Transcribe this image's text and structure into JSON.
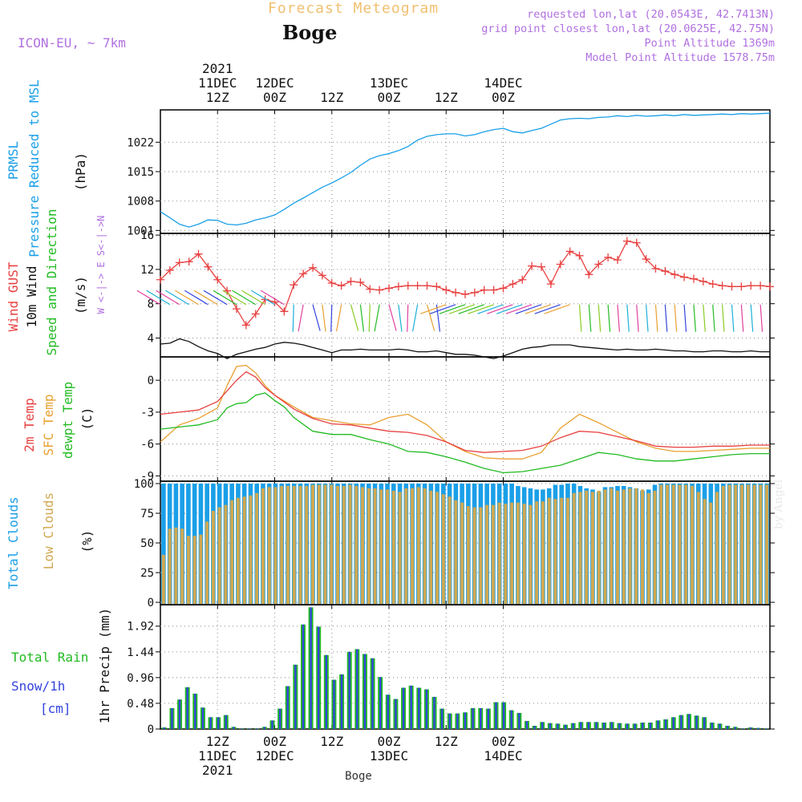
{
  "header": {
    "title": "Forecast Meteogram",
    "location": "Boge",
    "model": "ICON-EU, ~ 7km",
    "requested": "requested lon,lat (20.0543E, 42.7413N)",
    "gridpoint": "grid point closest lon,lat (20.0625E, 42.75N)",
    "point_alt": "Point Altitude 1369m",
    "model_alt": "Model Point Altitude 1578.75m",
    "credit": "by Angel",
    "footer": "Boge"
  },
  "colors": {
    "pressure": "#1a9fe8",
    "gust": "#e84040",
    "wind": "#111111",
    "dir": "#22bb22",
    "t2m": "#e84040",
    "tsfc": "#e8a030",
    "tdew": "#22bb22",
    "cloud_total": "#1a9fe8",
    "cloud_low": "#d0a850",
    "rain": "#22bb22",
    "snow": "#3344dd",
    "grid": "#999999"
  },
  "chart_data": [
    {
      "type": "line",
      "title": "PRMSL Pressure Reduced to MSL",
      "ylabel": "(hPa)",
      "label_lines": [
        "PRMSL",
        "Pressure Reduced to MSL",
        "(hPa)"
      ],
      "ylim": [
        1000.3,
        1029.7
      ],
      "yticks": [
        1001,
        1008,
        1015,
        1022
      ],
      "series": [
        {
          "name": "PRMSL",
          "x": [
            0,
            2,
            4,
            6,
            8,
            10,
            12,
            14,
            16,
            18,
            20,
            22,
            24,
            26,
            28,
            30,
            32,
            34,
            36,
            38,
            40,
            42,
            44,
            46,
            48,
            50,
            52,
            54,
            56,
            58,
            60,
            62,
            64,
            66,
            68,
            70,
            72,
            74,
            76,
            78,
            80,
            82,
            84,
            86,
            88,
            90,
            92,
            94,
            96,
            98,
            100,
            102,
            104,
            106,
            108,
            110,
            112,
            114,
            116,
            118,
            120,
            122,
            124,
            126,
            128
          ],
          "values": [
            1005.5,
            1004,
            1002.5,
            1001.8,
            1002.5,
            1003.5,
            1003.4,
            1002.5,
            1002.3,
            1002.7,
            1003.5,
            1004,
            1004.7,
            1006,
            1007.5,
            1008.7,
            1010,
            1011.3,
            1012.3,
            1013.5,
            1014.8,
            1016.5,
            1018,
            1018.8,
            1019.3,
            1020,
            1021,
            1022.5,
            1023.4,
            1023.8,
            1024,
            1024,
            1023.5,
            1023.8,
            1024.5,
            1025,
            1025.3,
            1024.5,
            1024.2,
            1024.8,
            1025.3,
            1026.3,
            1027.3,
            1027.6,
            1027.7,
            1027.6,
            1027.9,
            1028,
            1028.3,
            1028.1,
            1028.4,
            1028.2,
            1028.3,
            1028.5,
            1028.3,
            1028.6,
            1028.4,
            1028.5,
            1028.6,
            1028.7,
            1028.6,
            1028.8,
            1028.7,
            1028.8,
            1028.9
          ]
        }
      ]
    },
    {
      "type": "line",
      "title": "Wind GUST / 10m Wind Speed and Direction",
      "ylabel": "(m/s)",
      "label_lines": [
        "Wind GUST",
        "10m Wind",
        "Speed and Direction",
        "(m/s)"
      ],
      "compass": "W <-|-> E  S<-|->N",
      "ylim": [
        1.8,
        16.2
      ],
      "yticks": [
        4,
        8,
        12,
        16
      ],
      "series": [
        {
          "name": "Wind GUST",
          "x": [
            0,
            2,
            4,
            6,
            8,
            10,
            12,
            14,
            16,
            18,
            20,
            22,
            24,
            26,
            28,
            30,
            32,
            34,
            36,
            38,
            40,
            42,
            44,
            46,
            48,
            50,
            52,
            54,
            56,
            58,
            60,
            62,
            64,
            66,
            68,
            70,
            72,
            74,
            76,
            78,
            80,
            82,
            84,
            86,
            88,
            90,
            92,
            94,
            96,
            98,
            100,
            102,
            104,
            106,
            108,
            110,
            112,
            114,
            116,
            118,
            120,
            122,
            124,
            126,
            128
          ],
          "values": [
            10.8,
            11.9,
            12.8,
            12.9,
            13.8,
            12.3,
            10.8,
            9.5,
            7.4,
            5.5,
            6.8,
            8.5,
            8.2,
            7.1,
            10.2,
            11.5,
            12.2,
            11.3,
            10.4,
            10.1,
            10.6,
            10.5,
            9.7,
            9.6,
            9.8,
            10,
            10.1,
            10.1,
            10.1,
            10,
            9.6,
            9.3,
            9.1,
            9.3,
            9.6,
            9.6,
            9.8,
            10.3,
            10.8,
            12.4,
            12.3,
            10.3,
            12.6,
            14.1,
            13.6,
            11.4,
            12.6,
            13.4,
            13.1,
            15.3,
            15.1,
            13.2,
            12.1,
            11.8,
            11.4,
            11.1,
            10.9,
            10.6,
            10.3,
            10.1,
            10.0,
            10.0,
            10.1,
            10.1,
            10.0
          ]
        },
        {
          "name": "10m Wind",
          "x": [
            0,
            2,
            4,
            6,
            8,
            10,
            12,
            14,
            16,
            18,
            20,
            22,
            24,
            26,
            28,
            30,
            32,
            34,
            36,
            38,
            40,
            42,
            44,
            46,
            48,
            50,
            52,
            54,
            56,
            58,
            60,
            62,
            64,
            66,
            68,
            70,
            72,
            74,
            76,
            78,
            80,
            82,
            84,
            86,
            88,
            90,
            92,
            94,
            96,
            98,
            100,
            102,
            104,
            106,
            108,
            110,
            112,
            114,
            116,
            118,
            120,
            122,
            124,
            126,
            128
          ],
          "values": [
            3.3,
            3.4,
            3.9,
            3.6,
            3,
            2.5,
            2.2,
            1.6,
            2.1,
            2.4,
            2.7,
            2.9,
            3.3,
            3.5,
            3.4,
            3.2,
            2.9,
            2.6,
            2.3,
            2.6,
            2.6,
            2.7,
            2.6,
            2.6,
            2.6,
            2.7,
            2.6,
            2.4,
            2.4,
            2.5,
            2.3,
            2.1,
            2.1,
            2,
            1.8,
            1.6,
            1.9,
            2.3,
            2.7,
            2.9,
            3,
            3.2,
            3.2,
            3.2,
            3,
            2.9,
            2.8,
            2.7,
            2.6,
            2.7,
            2.6,
            2.6,
            2.7,
            2.6,
            2.5,
            2.5,
            2.4,
            2.4,
            2.5,
            2.5,
            2.4,
            2.4,
            2.5,
            2.4,
            2.4
          ]
        }
      ]
    },
    {
      "type": "line",
      "title": "2m Temp / SFC Temp / dewpt Temp",
      "ylabel": "(C)",
      "label_lines": [
        "2m Temp",
        "SFC Temp",
        "dewpt Temp",
        "(C)"
      ],
      "ylim": [
        -9.5,
        2.2
      ],
      "yticks": [
        -9,
        -6,
        -3,
        0
      ],
      "series": [
        {
          "name": "2m Temp",
          "x": [
            0,
            4,
            8,
            12,
            16,
            18,
            20,
            22,
            24,
            28,
            32,
            36,
            40,
            44,
            48,
            52,
            56,
            60,
            64,
            68,
            72,
            76,
            80,
            84,
            88,
            92,
            96,
            100,
            104,
            108,
            112,
            116,
            120,
            124,
            128
          ],
          "values": [
            -3.2,
            -3,
            -2.8,
            -2,
            0,
            0.8,
            0.3,
            -0.7,
            -1.4,
            -2.7,
            -3.6,
            -4.1,
            -4.2,
            -4.5,
            -4.8,
            -4.9,
            -5.2,
            -5.8,
            -6.6,
            -6.8,
            -6.7,
            -6.6,
            -6.2,
            -5.4,
            -4.8,
            -4.9,
            -5.3,
            -5.7,
            -6.2,
            -6.3,
            -6.3,
            -6.2,
            -6.2,
            -6.1,
            -6.1
          ]
        },
        {
          "name": "SFC Temp",
          "x": [
            0,
            4,
            8,
            12,
            14,
            16,
            18,
            20,
            22,
            24,
            28,
            32,
            36,
            40,
            44,
            48,
            52,
            56,
            60,
            64,
            68,
            72,
            76,
            80,
            84,
            88,
            92,
            96,
            100,
            104,
            108,
            112,
            116,
            120,
            124,
            128
          ],
          "values": [
            -5.8,
            -4.2,
            -3.6,
            -2.6,
            -0.5,
            1.3,
            1.4,
            0.7,
            -0.5,
            -1.4,
            -2.5,
            -3.5,
            -3.8,
            -4.1,
            -4.2,
            -3.5,
            -3.2,
            -4.2,
            -5.8,
            -6.7,
            -7.3,
            -7.4,
            -7.4,
            -6.8,
            -4.5,
            -3.2,
            -4,
            -4.9,
            -5.8,
            -6.4,
            -6.7,
            -6.7,
            -6.6,
            -6.5,
            -6.4,
            -6.4
          ]
        },
        {
          "name": "dewpt Temp",
          "x": [
            0,
            4,
            8,
            12,
            14,
            16,
            18,
            20,
            22,
            24,
            26,
            28,
            32,
            36,
            40,
            44,
            48,
            52,
            56,
            60,
            64,
            68,
            72,
            76,
            80,
            84,
            88,
            92,
            96,
            100,
            104,
            108,
            112,
            116,
            120,
            124,
            128
          ],
          "values": [
            -4.6,
            -4.4,
            -4.2,
            -3.7,
            -2.6,
            -2.2,
            -2.1,
            -1.4,
            -1.2,
            -1.9,
            -2.5,
            -3.5,
            -4.8,
            -5.1,
            -5.1,
            -5.6,
            -6,
            -6.7,
            -6.8,
            -7.2,
            -7.7,
            -8.3,
            -8.7,
            -8.6,
            -8.3,
            -8.0,
            -7.4,
            -6.8,
            -7.0,
            -7.4,
            -7.6,
            -7.6,
            -7.4,
            -7.2,
            -7.0,
            -6.9,
            -6.9
          ]
        }
      ]
    },
    {
      "type": "bar",
      "title": "Total Clouds / Low Clouds",
      "ylabel": "(%)",
      "label_lines": [
        "Total Clouds",
        "Low Clouds",
        "(%)"
      ],
      "ylim": [
        -2,
        102
      ],
      "yticks": [
        0,
        25,
        50,
        75,
        100
      ],
      "series": [
        {
          "name": "Total Clouds",
          "values": [
            100,
            100,
            100,
            100,
            100,
            100,
            100,
            100,
            100,
            100,
            100,
            100,
            100,
            100,
            100,
            100,
            100,
            100,
            100,
            100,
            100,
            100,
            100,
            100,
            100,
            100,
            100,
            100,
            100,
            100,
            100,
            100,
            100,
            100,
            100,
            100,
            100,
            100,
            100,
            100,
            100,
            100,
            100,
            100,
            100,
            100,
            100,
            100,
            100,
            100,
            100,
            100,
            100,
            100,
            100,
            100,
            100,
            98,
            97,
            96,
            95,
            95,
            96,
            99,
            99,
            100,
            100,
            98,
            96,
            95,
            93,
            97,
            97,
            98,
            98,
            97,
            96,
            94,
            95,
            99,
            100,
            100,
            100,
            100,
            100,
            100,
            100,
            100,
            100,
            100,
            100,
            100,
            100,
            100,
            100,
            100,
            100,
            100
          ]
        },
        {
          "name": "Low Clouds",
          "values": [
            40,
            62,
            63,
            62,
            56,
            56,
            57,
            68,
            77,
            80,
            82,
            86,
            88,
            89,
            90,
            92,
            96,
            97,
            97,
            98,
            98,
            98,
            98,
            98,
            99,
            99,
            99,
            99,
            98,
            98,
            99,
            98,
            97,
            96,
            96,
            95,
            95,
            94,
            93,
            96,
            96,
            97,
            96,
            94,
            93,
            91,
            89,
            86,
            84,
            81,
            80,
            80,
            82,
            82,
            84,
            83,
            84,
            84,
            83,
            82,
            85,
            85,
            88,
            87,
            88,
            88,
            92,
            93,
            94,
            93,
            94,
            95,
            96,
            94,
            95,
            96,
            96,
            95,
            92,
            94,
            99,
            99,
            99,
            99,
            99,
            98,
            93,
            87,
            84,
            93,
            98,
            99,
            99,
            99,
            99,
            99,
            99,
            99
          ]
        }
      ]
    },
    {
      "type": "bar",
      "title": "Total Rain / Snow/1h [cm]",
      "ylabel": "1hr Precip (mm)",
      "label_lines": [
        "Total  Rain",
        "Snow/1h",
        "[cm]",
        "1hr Precip (mm)"
      ],
      "ylim": [
        0,
        2.32
      ],
      "yticks": [
        0,
        0.48,
        0.96,
        1.44,
        1.92
      ],
      "series": [
        {
          "name": "Total Rain",
          "values": [
            0.03,
            0.39,
            0.55,
            0.78,
            0.66,
            0.4,
            0.22,
            0.22,
            0.26,
            0.04,
            0.01,
            0.01,
            0.01,
            0.04,
            0.16,
            0.38,
            0.8,
            1.2,
            1.95,
            2.27,
            1.91,
            1.38,
            0.92,
            1.02,
            1.44,
            1.49,
            1.4,
            1.32,
            0.97,
            0.64,
            0.56,
            0.77,
            0.81,
            0.77,
            0.74,
            0.6,
            0.38,
            0.29,
            0.29,
            0.31,
            0.39,
            0.39,
            0.38,
            0.5,
            0.5,
            0.35,
            0.3,
            0.15,
            0.06,
            0.13,
            0.11,
            0.1,
            0.08,
            0.11,
            0.13,
            0.13,
            0.13,
            0.12,
            0.13,
            0.11,
            0.1,
            0.1,
            0.12,
            0.12,
            0.16,
            0.18,
            0.22,
            0.26,
            0.28,
            0.25,
            0.22,
            0.12,
            0.1,
            0.06,
            0.04,
            0.01,
            0.03,
            0.02,
            0.01
          ]
        }
      ]
    }
  ],
  "time_axis": {
    "top_ticks": [
      {
        "h": 12,
        "lines": [
          "2021",
          "11DEC",
          "12Z"
        ]
      },
      {
        "h": 24,
        "lines": [
          "12DEC",
          "00Z"
        ]
      },
      {
        "h": 36,
        "lines": [
          "12Z"
        ]
      },
      {
        "h": 48,
        "lines": [
          "13DEC",
          "00Z"
        ]
      },
      {
        "h": 60,
        "lines": [
          "12Z"
        ]
      },
      {
        "h": 72,
        "lines": [
          "14DEC",
          "00Z"
        ]
      }
    ],
    "bottom_ticks": [
      {
        "h": 12,
        "lines": [
          "12Z",
          "11DEC",
          "2021"
        ]
      },
      {
        "h": 24,
        "lines": [
          "00Z",
          "12DEC"
        ]
      },
      {
        "h": 36,
        "lines": [
          "12Z"
        ]
      },
      {
        "h": 48,
        "lines": [
          "00Z",
          "13DEC"
        ]
      },
      {
        "h": 60,
        "lines": [
          "12Z"
        ]
      },
      {
        "h": 72,
        "lines": [
          "00Z",
          "14DEC"
        ]
      }
    ]
  }
}
